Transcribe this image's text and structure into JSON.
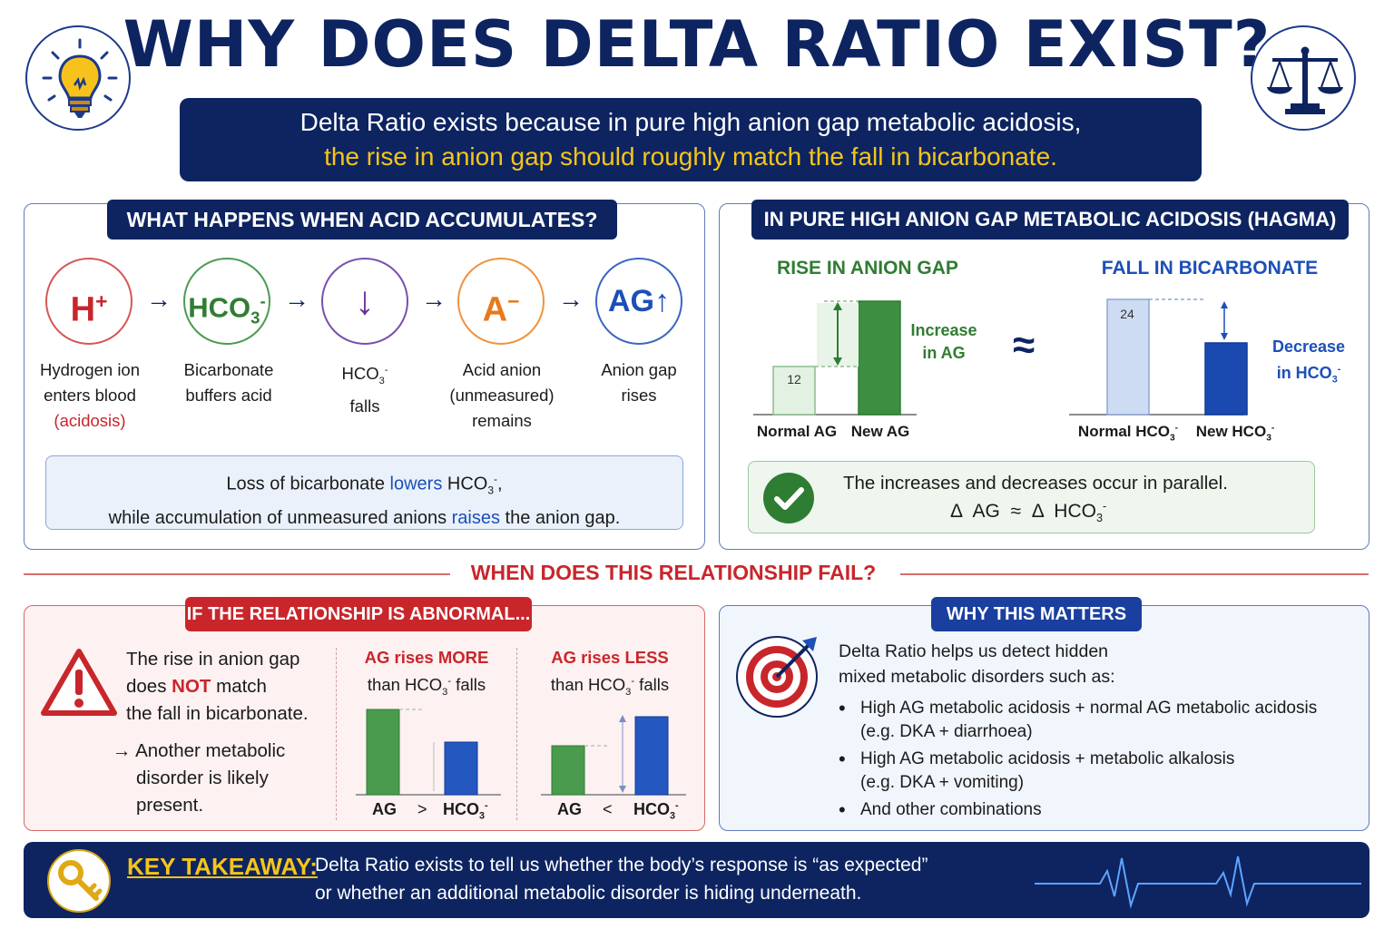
{
  "title": "WHY DOES DELTA RATIO EXIST?",
  "banner": {
    "line1": "Delta Ratio exists because in pure high anion gap metabolic acidosis,",
    "line2": "the rise in anion gap should roughly match the fall in bicarbonate."
  },
  "left_panel": {
    "heading": "WHAT HAPPENS WHEN ACID ACCUMULATES?",
    "steps": [
      {
        "symbol": "H",
        "symbol_sup": "+",
        "label_l1": "Hydrogen ion",
        "label_l2": "enters blood",
        "label_l3": "(acidosis)",
        "color": "#c8262b"
      },
      {
        "symbol": "HCO",
        "symbol_sub": "3",
        "symbol_sup": "-",
        "label_l1": "Bicarbonate",
        "label_l2": "buffers acid",
        "color": "#2f7d32"
      },
      {
        "symbol": "↓",
        "label_l1": "HCO",
        "label_sub": "3",
        "label_sup": "-",
        "label_l2": "falls",
        "color": "#6a2f9c"
      },
      {
        "symbol": "A",
        "symbol_sup": "−",
        "label_l1": "Acid anion",
        "label_l2": "(unmeasured)",
        "label_l3": "remains",
        "color": "#e8791b"
      },
      {
        "symbol": "AG",
        "symbol_arrow": "↑",
        "label_l1": "Anion gap",
        "label_l2": "rises",
        "color": "#1c4fb8"
      }
    ],
    "info": {
      "l1_a": "Loss of bicarbonate ",
      "l1_b": "lowers",
      "l1_c": " HCO",
      "l1_sub": "3",
      "l1_sup": "-",
      "l1_d": ",",
      "l2_a": "while accumulation of unmeasured anions ",
      "l2_b": "raises",
      "l2_c": " the anion gap."
    }
  },
  "right_panel": {
    "heading": "IN PURE HIGH ANION GAP METABOLIC ACIDOSIS (HAGMA)",
    "left_chart": {
      "title": "RISE IN ANION GAP",
      "categories": [
        "Normal AG",
        "New AG"
      ],
      "values": [
        12,
        null
      ],
      "value_label": "12",
      "note_l1": "Increase",
      "note_l2": "in AG"
    },
    "approx": "≈",
    "right_chart": {
      "title": "FALL IN BICARBONATE",
      "cat1": "Normal HCO",
      "cat2": "New HCO",
      "cat_sub": "3",
      "cat_sup": "-",
      "values": [
        24,
        null
      ],
      "value_label": "24",
      "note_l1": "Decrease",
      "note_l2": "in HCO",
      "note_sub": "3",
      "note_sup": "-"
    },
    "conclusion": {
      "l1": "The increases and decreases occur in parallel.",
      "l2_a": "Δ  AG  ≈  Δ  HCO",
      "l2_sub": "3",
      "l2_sup": "-"
    }
  },
  "section_title": "WHEN DOES THIS RELATIONSHIP FAIL?",
  "abnormal_panel": {
    "heading": "IF THE RELATIONSHIP IS ABNORMAL...",
    "text_l1": "The rise in anion gap",
    "text_l2a": "does ",
    "text_l2b": "NOT",
    "text_l2c": " match",
    "text_l3": "the fall in bicarbonate.",
    "arrow_l1": "→ Another metabolic",
    "arrow_l2": "disorder is likely",
    "arrow_l3": "present.",
    "case_more": {
      "t1a": "AG rises ",
      "t1b": "MORE",
      "t2a": "than HCO",
      "t2sub": "3",
      "t2sup": "-",
      "t2b": " falls",
      "x1": "AG",
      "op": ">",
      "x2": "HCO",
      "x2sub": "3",
      "x2sup": "-"
    },
    "case_less": {
      "t1a": "AG rises ",
      "t1b": "LESS",
      "t2a": "than HCO",
      "t2sub": "3",
      "t2sup": "-",
      "t2b": " falls",
      "x1": "AG",
      "op": "<",
      "x2": "HCO",
      "x2sub": "3",
      "x2sup": "-"
    }
  },
  "matters_panel": {
    "heading": "WHY THIS MATTERS",
    "intro_l1": "Delta Ratio helps us detect hidden",
    "intro_l2": "mixed metabolic disorders such as:",
    "bullets": [
      {
        "l1": "High AG metabolic acidosis + normal AG metabolic acidosis",
        "l2": "(e.g. DKA + diarrhoea)"
      },
      {
        "l1": "High AG metabolic acidosis + metabolic alkalosis",
        "l2": "(e.g. DKA + vomiting)"
      },
      {
        "l1": "And other combinations",
        "l2": ""
      }
    ]
  },
  "footer": {
    "label": "KEY TAKEAWAY:",
    "l1": "Delta Ratio exists to tell us whether the body’s response is “as expected”",
    "l2": "or whether an additional metabolic disorder is hiding underneath."
  },
  "colors": {
    "navy": "#0d2461",
    "red": "#c8262b",
    "green": "#2f7d32",
    "blue": "#1c4fb8",
    "gold": "#f5c518"
  },
  "icons": [
    "lightbulb-icon",
    "scales-icon",
    "check-icon",
    "warning-icon",
    "target-icon",
    "key-icon",
    "heartbeat-icon"
  ]
}
